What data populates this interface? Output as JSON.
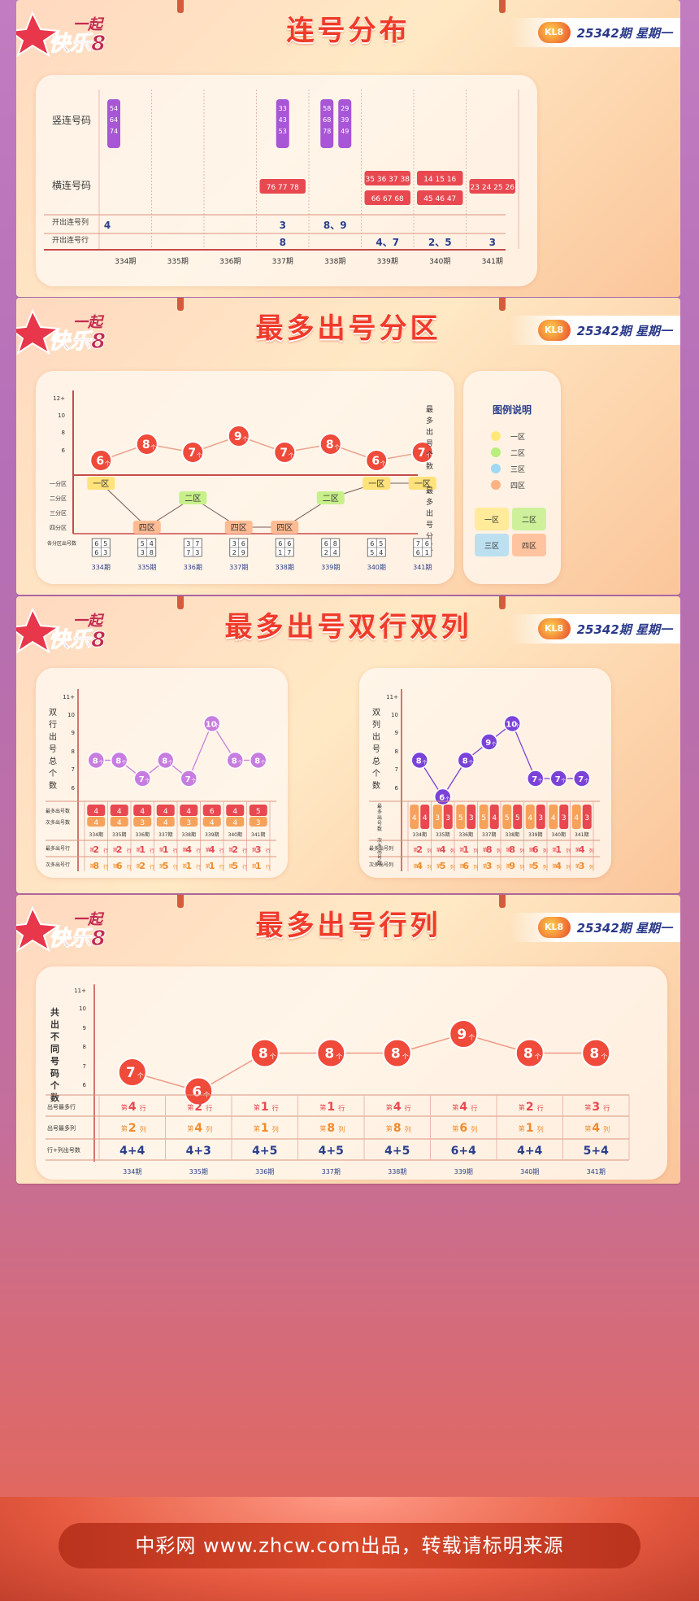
{
  "header": {
    "logo_text": "一起 快乐8",
    "issue": "25342期",
    "weekday": "星期一"
  },
  "issues": [
    "334期",
    "335期",
    "336期",
    "337期",
    "338期",
    "339期",
    "340期",
    "341期"
  ],
  "sec1": {
    "title": "连号分布",
    "row_labels": [
      "竖连号码",
      "横连号码",
      "开出连号列",
      "开出连号行"
    ],
    "vertical": [
      {
        "col": 0,
        "nums": [
          "54",
          "64",
          "74"
        ]
      },
      {
        "col": 3,
        "nums": [
          "33",
          "43",
          "53"
        ]
      },
      {
        "col": 4,
        "nums": [
          "58",
          "68",
          "78"
        ]
      },
      {
        "col": 4,
        "nums": [
          "29",
          "39",
          "49"
        ]
      }
    ],
    "horizontal": [
      {
        "col": 3,
        "text": "76 77 78"
      },
      {
        "col": 5,
        "text": "35 36 37 38"
      },
      {
        "col": 5,
        "text": "66 67 68"
      },
      {
        "col": 6,
        "text": "14 15 16"
      },
      {
        "col": 6,
        "text": "45 46 47"
      },
      {
        "col": 7,
        "text": "23 24 25 26"
      }
    ],
    "col_values": [
      "4",
      "",
      "",
      "3",
      "8、9",
      "",
      "",
      ""
    ],
    "row_values": [
      "",
      "",
      "",
      "8",
      "",
      "4、7",
      "2、5",
      "3"
    ]
  },
  "sec2": {
    "title": "最多出号分区",
    "y_ticks": [
      "12+",
      "10",
      "8",
      "6"
    ],
    "counts": [
      6,
      8,
      7,
      9,
      7,
      8,
      6,
      7
    ],
    "unit": "个",
    "right_label_top": "最多出号个数",
    "right_label_bottom": "最多出号分区",
    "zones_axis": [
      "一分区",
      "二分区",
      "三分区",
      "四分区"
    ],
    "zones": [
      "一区",
      "四区",
      "二区",
      "四区",
      "四区",
      "二区",
      "一区",
      "一区"
    ],
    "zone_level": [
      1,
      4,
      2,
      4,
      4,
      2,
      1,
      1
    ],
    "sub_label": "各分区出号数",
    "grids": [
      [
        "6",
        "5",
        "6",
        "3"
      ],
      [
        "5",
        "4",
        "3",
        "8"
      ],
      [
        "3",
        "7",
        "7",
        "3"
      ],
      [
        "3",
        "6",
        "2",
        "9"
      ],
      [
        "6",
        "6",
        "1",
        "7"
      ],
      [
        "6",
        "8",
        "2",
        "4"
      ],
      [
        "6",
        "5",
        "5",
        "4"
      ],
      [
        "7",
        "6",
        "6",
        "1"
      ]
    ],
    "legend": {
      "title": "图例说明",
      "items": [
        "一区",
        "二区",
        "三区",
        "四区"
      ],
      "colors": [
        "#ffe87a",
        "#b9ef7c",
        "#9fd8f5",
        "#ffb183"
      ]
    }
  },
  "sec3": {
    "title": "最多出号双行双列",
    "left": {
      "ylabel": "双行出号总个数",
      "y_ticks": [
        "11+",
        "10",
        "9",
        "8",
        "7",
        "6"
      ],
      "values": [
        8,
        8,
        7,
        8,
        7,
        10,
        8,
        8
      ],
      "top": [
        "4",
        "4",
        "4",
        "4",
        "4",
        "6",
        "4",
        "5"
      ],
      "second": [
        "4",
        "4",
        "3",
        "4",
        "3",
        "4",
        "4",
        "3"
      ],
      "rowlabels": [
        "最多出号数",
        "次多出号数",
        "最多出号行",
        "次多出号行"
      ],
      "most": [
        "2",
        "2",
        "1",
        "1",
        "4",
        "4",
        "2",
        "3"
      ],
      "next": [
        "8",
        "6",
        "2",
        "5",
        "1",
        "1",
        "5",
        "1"
      ],
      "unit_most": "行",
      "prefix": "第"
    },
    "right": {
      "ylabel": "双列出号总个数",
      "y_ticks": [
        "11+",
        "10",
        "9",
        "8",
        "7",
        "6"
      ],
      "values": [
        8,
        6,
        8,
        9,
        10,
        7,
        7,
        7
      ],
      "top": [
        "4",
        "3",
        "5",
        "5",
        "5",
        "4",
        "4",
        "4"
      ],
      "second": [
        "4",
        "3",
        "3",
        "4",
        "5",
        "3",
        "3",
        "3"
      ],
      "vlabel": "最多出号数 次多出号数",
      "rowlabels": [
        "最多出号列",
        "次多出号列"
      ],
      "most": [
        "2",
        "4",
        "1",
        "8",
        "8",
        "6",
        "1",
        "4"
      ],
      "next": [
        "4",
        "5",
        "6",
        "3",
        "9",
        "5",
        "4",
        "3"
      ],
      "unit_most": "列",
      "prefix": "第"
    }
  },
  "sec4": {
    "title": "最多出号行列",
    "ylabel": "共出不同号码个数",
    "y_ticks": [
      "11+",
      "10",
      "9",
      "8",
      "7",
      "6"
    ],
    "values": [
      7,
      6,
      8,
      8,
      8,
      9,
      8,
      8
    ],
    "rowlabels": [
      "出号最多行",
      "出号最多列",
      "行+列出号数"
    ],
    "rows": [
      "4",
      "2",
      "1",
      "1",
      "4",
      "4",
      "2",
      "3"
    ],
    "cols": [
      "2",
      "4",
      "1",
      "8",
      "8",
      "6",
      "1",
      "4"
    ],
    "sums": [
      "4+4",
      "4+3",
      "4+5",
      "4+5",
      "4+5",
      "6+4",
      "4+4",
      "5+4"
    ],
    "row_unit": "行",
    "col_unit": "列",
    "prefix": "第"
  },
  "footer": "中彩网 www.zhcw.com出品，转载请标明来源"
}
